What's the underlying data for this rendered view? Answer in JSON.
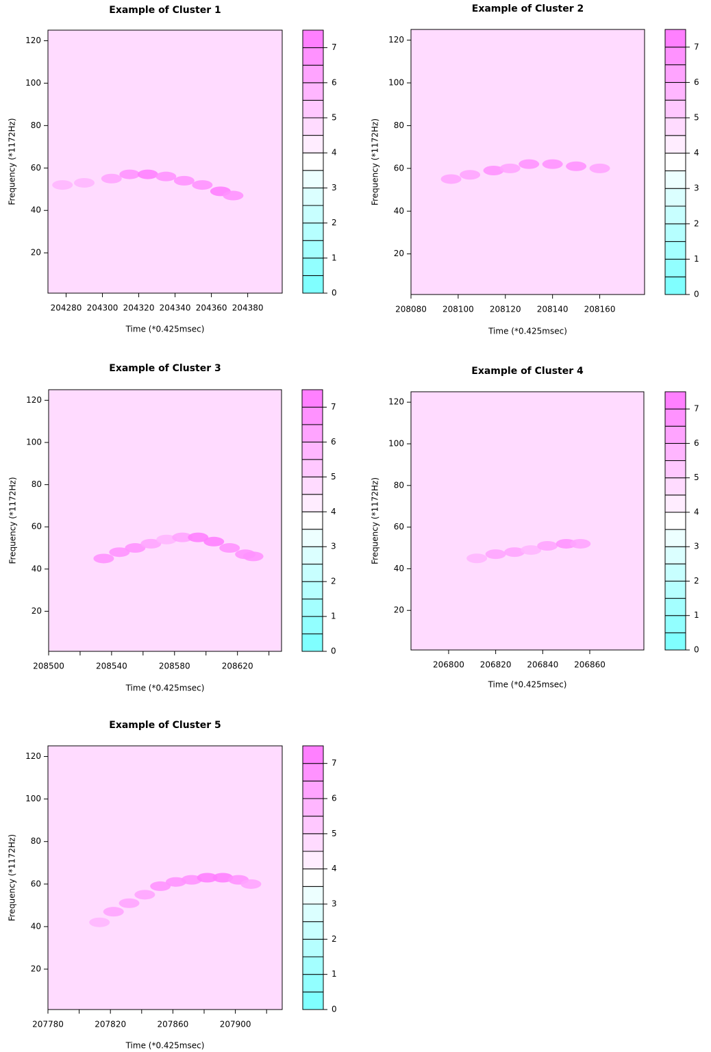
{
  "colorbar": {
    "levels": [
      0,
      0.5,
      1,
      1.5,
      2,
      2.5,
      3,
      3.5,
      4,
      4.5,
      5,
      5.5,
      6,
      6.5,
      7,
      7.5
    ],
    "colors": [
      "#80ffff",
      "#92ffff",
      "#a4ffff",
      "#b6ffff",
      "#c8ffff",
      "#dbffff",
      "#edffff",
      "#ffffff",
      "#ffedff",
      "#ffdbff",
      "#ffc8ff",
      "#ffb6ff",
      "#ffa4ff",
      "#ff92ff",
      "#ff80ff"
    ],
    "ticks": [
      0,
      1,
      2,
      3,
      4,
      5,
      6,
      7
    ]
  },
  "chart_data": [
    {
      "type": "contour",
      "title": "Example of Cluster 1",
      "x_label": "Time (*0.425msec)",
      "y_label": "Frequency (*1172Hz)",
      "xlim": [
        204270,
        204399
      ],
      "ylim": [
        1,
        125
      ],
      "xticks": [
        204280,
        204300,
        204320,
        204340,
        204360,
        204380
      ],
      "yticks": [
        20,
        40,
        60,
        80,
        100,
        120
      ],
      "base_value": 4.9,
      "ridge": {
        "x": [
          204278,
          204290,
          204305,
          204315,
          204325,
          204335,
          204345,
          204355,
          204365,
          204372
        ],
        "y": [
          52,
          53,
          55,
          57,
          57,
          56,
          54,
          52,
          49,
          47
        ],
        "values": [
          5.5,
          5.5,
          6,
          6.5,
          7,
          6.5,
          6.5,
          6.5,
          7,
          6.5
        ]
      }
    },
    {
      "type": "contour",
      "title": "Example of Cluster 2",
      "x_label": "Time (*0.425msec)",
      "y_label": "Frequency (*1172Hz)",
      "xlim": [
        208080,
        208179
      ],
      "ylim": [
        1,
        125
      ],
      "xticks": [
        208080,
        208100,
        208120,
        208140,
        208160
      ],
      "yticks": [
        20,
        40,
        60,
        80,
        100,
        120
      ],
      "base_value": 4.9,
      "ridge": {
        "x": [
          208097,
          208105,
          208115,
          208122,
          208130,
          208140,
          208150,
          208160
        ],
        "y": [
          55,
          57,
          59,
          60,
          62,
          62,
          61,
          60
        ],
        "values": [
          6,
          6,
          6.5,
          6,
          6.5,
          6.5,
          6.5,
          6
        ]
      }
    },
    {
      "type": "contour",
      "title": "Example of Cluster 3",
      "x_label": "Time (*0.425msec)",
      "y_label": "Frequency (*1172Hz)",
      "xlim": [
        208500,
        208648
      ],
      "ylim": [
        1,
        125
      ],
      "xticks": [
        208500,
        {
          "value": 208520,
          "label": null
        },
        208540,
        {
          "value": 208560,
          "label": null
        },
        208580,
        {
          "value": 208600,
          "label": null
        },
        208620,
        {
          "value": 208640,
          "label": null
        }
      ],
      "yticks": [
        20,
        40,
        60,
        80,
        100,
        120
      ],
      "base_value": 4.9,
      "ridge": {
        "x": [
          208535,
          208545,
          208555,
          208565,
          208575,
          208585,
          208595,
          208605,
          208615,
          208625,
          208630
        ],
        "y": [
          45,
          48,
          50,
          52,
          54,
          55,
          55,
          53,
          50,
          47,
          46
        ],
        "values": [
          6.5,
          6.5,
          6.5,
          6,
          5.5,
          6,
          7,
          7,
          6.5,
          6.5,
          6.5
        ]
      }
    },
    {
      "type": "contour",
      "title": "Example of Cluster 4",
      "x_label": "Time (*0.425msec)",
      "y_label": "Frequency (*1172Hz)",
      "xlim": [
        206784,
        206883
      ],
      "ylim": [
        1,
        125
      ],
      "xticks": [
        206800,
        206820,
        206840,
        206860
      ],
      "yticks": [
        20,
        40,
        60,
        80,
        100,
        120
      ],
      "base_value": 4.9,
      "ridge": {
        "x": [
          206812,
          206820,
          206828,
          206835,
          206842,
          206850,
          206856
        ],
        "y": [
          45,
          47,
          48,
          49,
          51,
          52,
          52
        ],
        "values": [
          5.5,
          6,
          6,
          5.5,
          6,
          6.5,
          6
        ]
      }
    },
    {
      "type": "contour",
      "title": "Example of Cluster 5",
      "x_label": "Time (*0.425msec)",
      "y_label": "Frequency (*1172Hz)",
      "xlim": [
        207780,
        207930
      ],
      "ylim": [
        1,
        125
      ],
      "xticks": [
        207780,
        {
          "value": 207800,
          "label": null
        },
        207820,
        {
          "value": 207840,
          "label": null
        },
        207860,
        {
          "value": 207880,
          "label": null
        },
        207900,
        {
          "value": 207920,
          "label": null
        }
      ],
      "yticks": [
        20,
        40,
        60,
        80,
        100,
        120
      ],
      "base_value": 4.9,
      "ridge": {
        "x": [
          207813,
          207822,
          207832,
          207842,
          207852,
          207862,
          207872,
          207882,
          207892,
          207902,
          207910
        ],
        "y": [
          42,
          47,
          51,
          55,
          59,
          61,
          62,
          63,
          63,
          62,
          60
        ],
        "values": [
          5.5,
          6,
          6,
          6,
          6.5,
          6.5,
          6.5,
          7,
          7,
          6.5,
          6
        ]
      }
    }
  ]
}
